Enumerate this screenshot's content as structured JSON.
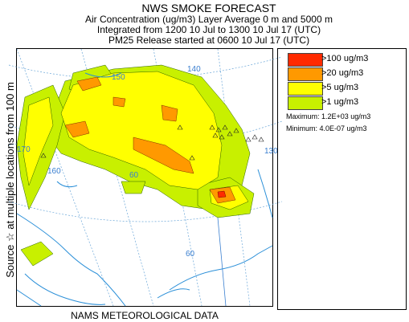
{
  "header": {
    "title": "NWS SMOKE FORECAST",
    "line1": "Air Concentration (ug/m3) Layer Average    0 m and  5000 m",
    "line2": "Integrated from 1200 10 Jul to 1300 10 Jul 17 (UTC)",
    "line3": "PM25 Release started at 0600 10 Jul 17 (UTC)"
  },
  "side_label": "Source ☆    at multiple locations    from  100 m",
  "footer": "NAMS METEOROLOGICAL DATA",
  "legend": [
    {
      "label": ">100 ug/m3",
      "color": "#ff2a00"
    },
    {
      "label": ">20 ug/m3",
      "color": "#ff9900"
    },
    {
      "label": ">5 ug/m3",
      "color": "#ffff00"
    },
    {
      "label": ">1 ug/m3",
      "color": "#c8f000"
    }
  ],
  "stats": {
    "maximum": "Maximum: 1.2E+03 ug/m3",
    "minimum": "Minimum: 4.0E-07 ug/m3"
  },
  "map": {
    "longitude_labels": [
      "170",
      "160",
      "150",
      "140",
      "130",
      "60",
      "60"
    ],
    "water_color": "#2a8fd8",
    "grid_color": "#6aa6d8"
  }
}
